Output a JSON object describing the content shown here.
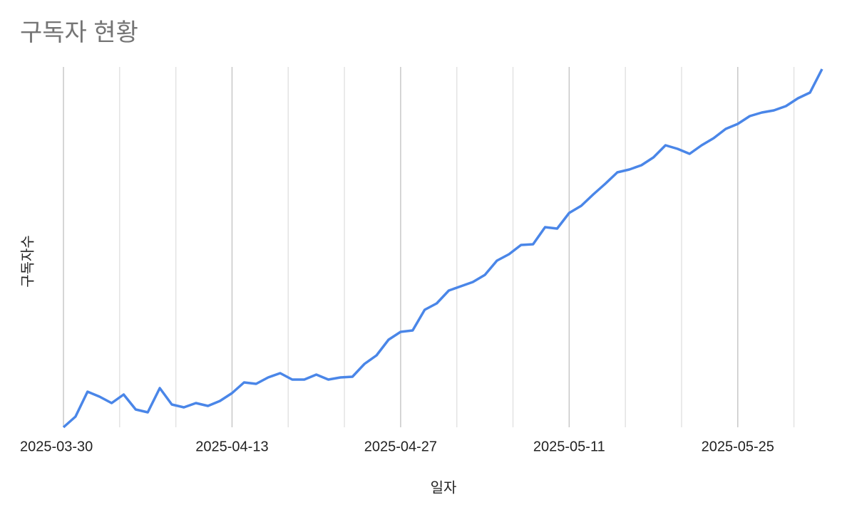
{
  "chart_data": {
    "type": "line",
    "title": "구독자 현황",
    "x_label": "일자",
    "y_label": "구독자수",
    "x": [
      "2025-03-30",
      "2025-03-31",
      "2025-04-01",
      "2025-04-02",
      "2025-04-03",
      "2025-04-04",
      "2025-04-05",
      "2025-04-06",
      "2025-04-07",
      "2025-04-08",
      "2025-04-09",
      "2025-04-10",
      "2025-04-11",
      "2025-04-12",
      "2025-04-13",
      "2025-04-14",
      "2025-04-15",
      "2025-04-16",
      "2025-04-17",
      "2025-04-18",
      "2025-04-19",
      "2025-04-20",
      "2025-04-21",
      "2025-04-22",
      "2025-04-23",
      "2025-04-24",
      "2025-04-25",
      "2025-04-26",
      "2025-04-27",
      "2025-04-28",
      "2025-04-29",
      "2025-04-30",
      "2025-05-01",
      "2025-05-02",
      "2025-05-03",
      "2025-05-04",
      "2025-05-05",
      "2025-05-06",
      "2025-05-07",
      "2025-05-08",
      "2025-05-09",
      "2025-05-10",
      "2025-05-11",
      "2025-05-12",
      "2025-05-13",
      "2025-05-14",
      "2025-05-15",
      "2025-05-16",
      "2025-05-17",
      "2025-05-18",
      "2025-05-19",
      "2025-05-20",
      "2025-05-21",
      "2025-05-22",
      "2025-05-23",
      "2025-05-24",
      "2025-05-25",
      "2025-05-26",
      "2025-05-27",
      "2025-05-28",
      "2025-05-29",
      "2025-05-30",
      "2025-05-31",
      "2025-06-01"
    ],
    "series": [
      {
        "name": "구독자수",
        "color": "#4a86e8",
        "values": [
          0,
          15,
          50,
          43,
          34,
          46,
          25,
          21,
          55,
          32,
          28,
          34,
          30,
          37,
          48,
          63,
          61,
          70,
          76,
          67,
          67,
          74,
          67,
          70,
          71,
          89,
          101,
          123,
          134,
          136,
          165,
          174,
          192,
          198,
          204,
          214,
          234,
          243,
          256,
          257,
          281,
          279,
          301,
          311,
          327,
          342,
          358,
          362,
          368,
          379,
          396,
          391,
          384,
          396,
          406,
          419,
          426,
          437,
          442,
          445,
          451,
          462,
          470,
          503
        ]
      }
    ],
    "ylim": [
      0,
      503
    ],
    "xticks": [
      "2025-03-30",
      "2025-04-13",
      "2025-04-27",
      "2025-05-11",
      "2025-05-25"
    ],
    "minor_grid_divisions": 3
  }
}
